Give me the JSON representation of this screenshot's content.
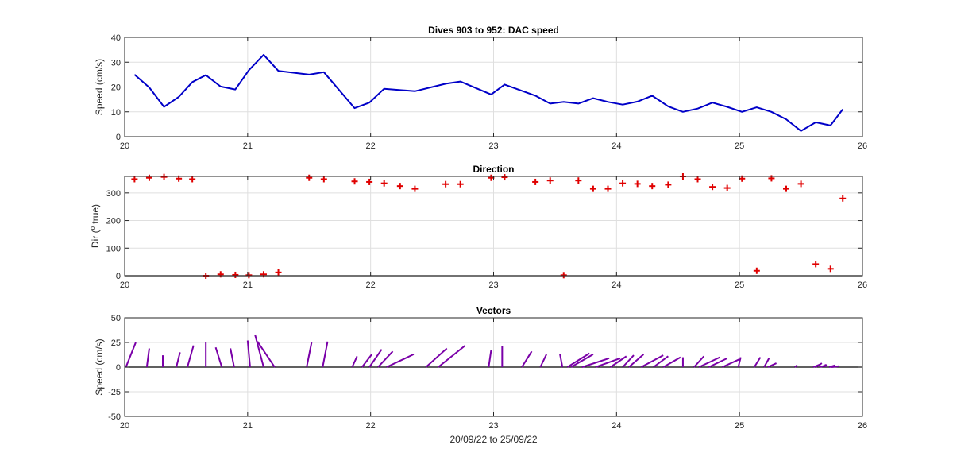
{
  "chart_data": [
    {
      "type": "line",
      "title": "Dives 903 to 952: DAC speed",
      "xlabel": "",
      "ylabel": "Speed (cm/s)",
      "xlim": [
        20,
        26
      ],
      "ylim": [
        0,
        40
      ],
      "xticks": [
        "20",
        "21",
        "22",
        "23",
        "24",
        "25",
        "26"
      ],
      "yticks": [
        "0",
        "10",
        "20",
        "30",
        "40"
      ],
      "grid": true,
      "color": "#0000c8",
      "x": [
        20.08,
        20.2,
        20.32,
        20.44,
        20.55,
        20.66,
        20.78,
        20.9,
        21.01,
        21.13,
        21.25,
        21.5,
        21.62,
        21.87,
        21.99,
        22.11,
        22.36,
        22.61,
        22.73,
        22.98,
        23.09,
        23.34,
        23.46,
        23.57,
        23.69,
        23.81,
        23.93,
        24.05,
        24.17,
        24.29,
        24.42,
        24.54,
        24.66,
        24.78,
        24.9,
        25.02,
        25.14,
        25.26,
        25.38,
        25.5,
        25.62,
        25.74,
        25.84
      ],
      "y": [
        25,
        19.8,
        12,
        16,
        22,
        24.8,
        20.2,
        19,
        26.8,
        33,
        26.5,
        25,
        26,
        11.5,
        13.7,
        19.3,
        18.3,
        21.3,
        22.2,
        17,
        21,
        16.5,
        13.3,
        14,
        13.3,
        15.5,
        14,
        12.9,
        14.1,
        16.5,
        12.2,
        10,
        11.3,
        13.7,
        12,
        10,
        11.8,
        10,
        7,
        2.3,
        5.8,
        4.5,
        11
      ]
    },
    {
      "type": "scatter",
      "title": "Direction",
      "xlabel": "",
      "ylabel": "Dir (° true)",
      "ylabel_main": "Dir (",
      "ylabel_sup": "o",
      "ylabel_end": " true)",
      "xlim": [
        20,
        26
      ],
      "ylim": [
        0,
        360
      ],
      "xticks": [
        "20",
        "21",
        "22",
        "23",
        "24",
        "25",
        "26"
      ],
      "yticks": [
        "0",
        "100",
        "200",
        "300"
      ],
      "grid": true,
      "marker": "+",
      "color": "#e00000",
      "x": [
        20.08,
        20.2,
        20.32,
        20.44,
        20.55,
        20.66,
        20.78,
        20.9,
        21.01,
        21.13,
        21.25,
        21.5,
        21.62,
        21.87,
        21.99,
        22.11,
        22.24,
        22.36,
        22.61,
        22.73,
        22.98,
        23.09,
        23.34,
        23.46,
        23.57,
        23.69,
        23.81,
        23.93,
        24.05,
        24.17,
        24.29,
        24.42,
        24.54,
        24.66,
        24.78,
        24.9,
        25.02,
        25.14,
        25.26,
        25.38,
        25.5,
        25.62,
        25.74,
        25.84
      ],
      "y": [
        350,
        355,
        358,
        352,
        350,
        0,
        5,
        3,
        2,
        5,
        12,
        355,
        350,
        342,
        340,
        335,
        325,
        315,
        332,
        332,
        355,
        357,
        340,
        345,
        2,
        345,
        315,
        315,
        335,
        333,
        325,
        330,
        360,
        350,
        322,
        318,
        352,
        18,
        353,
        315,
        333,
        42,
        25,
        280
      ]
    },
    {
      "type": "vector",
      "title": "Vectors",
      "xlabel": "20/09/22 to 25/09/22",
      "ylabel": "Speed (cm/s)",
      "xlim": [
        20,
        26
      ],
      "ylim": [
        -50,
        50
      ],
      "xticks": [
        "20",
        "21",
        "22",
        "23",
        "24",
        "25",
        "26"
      ],
      "yticks": [
        "-50",
        "-25",
        "0",
        "25",
        "50"
      ],
      "grid": true,
      "color": "#7a00a8",
      "vectors": [
        {
          "x": 20.01,
          "u": 0.08,
          "v": 25
        },
        {
          "x": 20.18,
          "u": 0.02,
          "v": 19
        },
        {
          "x": 20.31,
          "u": 0.0,
          "v": 12
        },
        {
          "x": 20.42,
          "u": 0.03,
          "v": 15
        },
        {
          "x": 20.51,
          "u": 0.05,
          "v": 22
        },
        {
          "x": 20.66,
          "u": 0.0,
          "v": 25
        },
        {
          "x": 20.79,
          "u": -0.05,
          "v": 20
        },
        {
          "x": 20.89,
          "u": -0.03,
          "v": 19
        },
        {
          "x": 21.02,
          "u": -0.02,
          "v": 27
        },
        {
          "x": 21.13,
          "u": -0.07,
          "v": 33
        },
        {
          "x": 21.22,
          "u": -0.14,
          "v": 26
        },
        {
          "x": 21.48,
          "u": 0.04,
          "v": 25
        },
        {
          "x": 21.61,
          "u": 0.04,
          "v": 26
        },
        {
          "x": 21.85,
          "u": 0.04,
          "v": 11
        },
        {
          "x": 21.93,
          "u": 0.08,
          "v": 13
        },
        {
          "x": 21.99,
          "u": 0.1,
          "v": 18
        },
        {
          "x": 22.06,
          "u": 0.12,
          "v": 16
        },
        {
          "x": 22.13,
          "u": 0.22,
          "v": 13
        },
        {
          "x": 22.45,
          "u": 0.17,
          "v": 19
        },
        {
          "x": 22.55,
          "u": 0.22,
          "v": 22
        },
        {
          "x": 22.96,
          "u": 0.02,
          "v": 17
        },
        {
          "x": 23.07,
          "u": 0.0,
          "v": 21
        },
        {
          "x": 23.23,
          "u": 0.08,
          "v": 16
        },
        {
          "x": 23.38,
          "u": 0.05,
          "v": 13
        },
        {
          "x": 23.56,
          "u": -0.02,
          "v": 13
        },
        {
          "x": 23.6,
          "u": 0.18,
          "v": 14
        },
        {
          "x": 23.63,
          "u": 0.18,
          "v": 13
        },
        {
          "x": 23.72,
          "u": 0.22,
          "v": 9
        },
        {
          "x": 23.83,
          "u": 0.2,
          "v": 9
        },
        {
          "x": 23.95,
          "u": 0.13,
          "v": 11
        },
        {
          "x": 24.05,
          "u": 0.09,
          "v": 12
        },
        {
          "x": 24.1,
          "u": 0.12,
          "v": 13
        },
        {
          "x": 24.2,
          "u": 0.18,
          "v": 12
        },
        {
          "x": 24.3,
          "u": 0.12,
          "v": 11
        },
        {
          "x": 24.38,
          "u": 0.14,
          "v": 10
        },
        {
          "x": 24.54,
          "u": 0.0,
          "v": 10
        },
        {
          "x": 24.63,
          "u": 0.08,
          "v": 11
        },
        {
          "x": 24.67,
          "u": 0.17,
          "v": 10
        },
        {
          "x": 24.75,
          "u": 0.15,
          "v": 9
        },
        {
          "x": 24.86,
          "u": 0.14,
          "v": 8
        },
        {
          "x": 24.99,
          "u": 0.02,
          "v": 10
        },
        {
          "x": 25.12,
          "u": 0.05,
          "v": 10
        },
        {
          "x": 25.2,
          "u": 0.04,
          "v": 9
        },
        {
          "x": 25.23,
          "u": 0.07,
          "v": 4
        },
        {
          "x": 25.45,
          "u": 0.02,
          "v": 2
        },
        {
          "x": 25.6,
          "u": 0.06,
          "v": 3
        },
        {
          "x": 25.62,
          "u": 0.05,
          "v": 4
        },
        {
          "x": 25.65,
          "u": 0.06,
          "v": 2
        },
        {
          "x": 25.7,
          "u": 0.0,
          "v": 3
        },
        {
          "x": 25.73,
          "u": 0.05,
          "v": 2
        },
        {
          "x": 25.75,
          "u": 0.06,
          "v": 1
        }
      ]
    }
  ]
}
